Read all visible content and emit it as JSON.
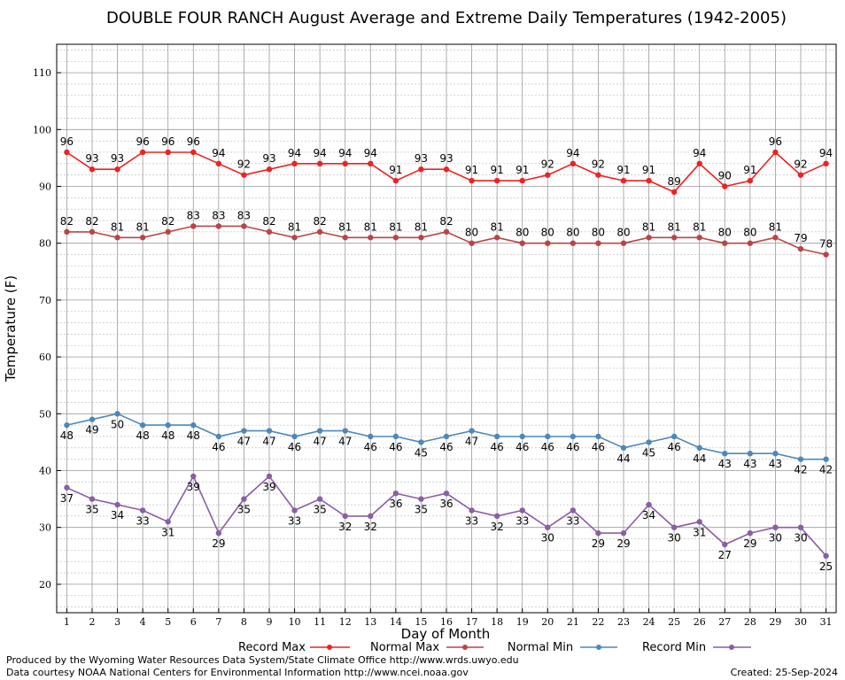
{
  "chart_data": {
    "type": "line",
    "title": "DOUBLE FOUR RANCH August Average and Extreme Daily Temperatures (1942-2005)",
    "xlabel": "Day of Month",
    "ylabel": "Temperature (F)",
    "x": [
      1,
      2,
      3,
      4,
      5,
      6,
      7,
      8,
      9,
      10,
      11,
      12,
      13,
      14,
      15,
      16,
      17,
      18,
      19,
      20,
      21,
      22,
      23,
      24,
      25,
      26,
      27,
      28,
      29,
      30,
      31
    ],
    "xlim": [
      0.6,
      31.4
    ],
    "ylim": [
      15,
      115
    ],
    "yticks": [
      20,
      30,
      40,
      50,
      60,
      70,
      80,
      90,
      100,
      110
    ],
    "grid": true,
    "legend_position": "bottom",
    "series": [
      {
        "name": "Record Max",
        "color": "#ee2222",
        "values": [
          96,
          93,
          93,
          96,
          96,
          96,
          94,
          92,
          93,
          94,
          94,
          94,
          94,
          91,
          93,
          93,
          91,
          91,
          91,
          92,
          94,
          92,
          91,
          91,
          89,
          94,
          90,
          91,
          96,
          92,
          94
        ],
        "label_position": "above"
      },
      {
        "name": "Normal Max",
        "color": "#bb4444",
        "values": [
          82,
          82,
          81,
          81,
          82,
          83,
          83,
          83,
          82,
          81,
          82,
          81,
          81,
          81,
          81,
          82,
          80,
          81,
          80,
          80,
          80,
          80,
          80,
          81,
          81,
          81,
          80,
          80,
          81,
          79,
          78
        ],
        "label_position": "above"
      },
      {
        "name": "Normal Min",
        "color": "#4d88bb",
        "values": [
          48,
          49,
          50,
          48,
          48,
          48,
          46,
          47,
          47,
          46,
          47,
          47,
          46,
          46,
          45,
          46,
          47,
          46,
          46,
          46,
          46,
          46,
          44,
          45,
          46,
          44,
          43,
          43,
          43,
          42,
          42
        ],
        "label_position": "below"
      },
      {
        "name": "Record Min",
        "color": "#8a5ea6",
        "values": [
          37,
          35,
          34,
          33,
          31,
          39,
          29,
          35,
          39,
          33,
          35,
          32,
          32,
          36,
          35,
          36,
          33,
          32,
          33,
          30,
          33,
          29,
          29,
          34,
          30,
          31,
          27,
          29,
          30,
          30,
          25
        ],
        "label_position": "below"
      }
    ]
  },
  "footer": {
    "produced_by": "Produced by the Wyoming Water Resources Data System/State Climate Office http://www.wrds.uwyo.edu",
    "courtesy": "Data courtesy NOAA National Centers for Environmental Information http://www.ncei.noaa.gov",
    "created": "Created:  25-Sep-2024"
  }
}
